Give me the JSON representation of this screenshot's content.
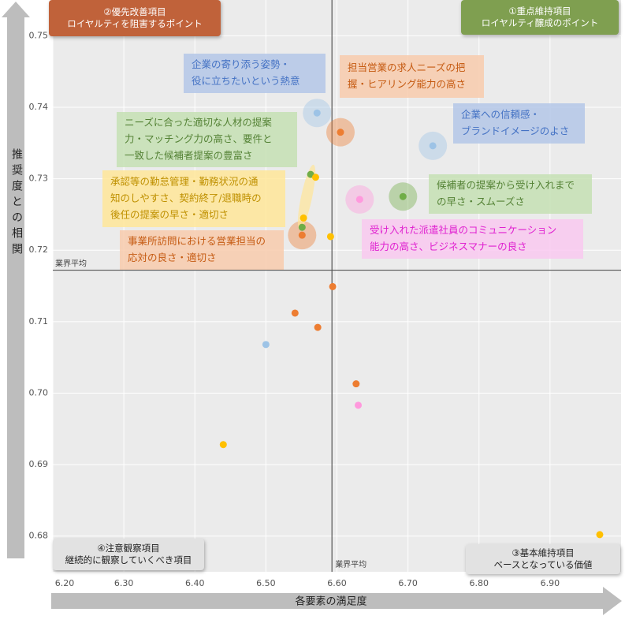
{
  "chart_data": {
    "type": "scatter",
    "x_label": "各要素の満足度",
    "y_label": "推奨度との相関",
    "xlim": [
      6.2,
      7.0
    ],
    "xticks": [
      {
        "value": 6.2,
        "label": "6.20"
      },
      {
        "value": 6.3,
        "label": "6.30"
      },
      {
        "value": 6.4,
        "label": "6.40"
      },
      {
        "value": 6.5,
        "label": "6.50"
      },
      {
        "value": 6.6,
        "label": "6.60"
      },
      {
        "value": 6.7,
        "label": "6.70"
      },
      {
        "value": 6.8,
        "label": "6.80"
      },
      {
        "value": 6.9,
        "label": "6.90"
      }
    ],
    "ylim": [
      0.675,
      0.755
    ],
    "yticks": [
      {
        "value": 0.68,
        "label": "0.68"
      },
      0.69,
      {
        "value": 0.7,
        "label": "0.70"
      },
      0.71,
      0.72,
      0.73,
      0.74,
      0.75
    ],
    "grid": true,
    "reference_lines": {
      "x": 6.593,
      "y": 0.7172,
      "label": "業界平均"
    },
    "points": {
      "x": [
        6.572,
        6.605,
        6.735,
        6.693,
        6.632,
        6.563,
        6.57,
        6.553,
        6.551,
        6.551,
        6.591,
        6.594,
        6.541,
        6.573,
        6.5,
        6.627,
        6.63,
        6.44,
        6.97
      ],
      "y": [
        0.7392,
        0.7365,
        0.7346,
        0.7275,
        0.7271,
        0.7306,
        0.7302,
        0.7245,
        0.7232,
        0.7221,
        0.7219,
        0.7149,
        0.7112,
        0.7092,
        0.7068,
        0.7013,
        0.6983,
        0.6928,
        0.6802
      ],
      "colors": [
        "#9dc3e6",
        "#ed7d31",
        "#9dc3e6",
        "#70ad47",
        "#ff99dd",
        "#70ad47",
        "#ffc000",
        "#ffc000",
        "#70ad47",
        "#ed7d31",
        "#ffc000",
        "#ed7d31",
        "#ed7d31",
        "#ed7d31",
        "#9dc3e6",
        "#ed7d31",
        "#ff99dd",
        "#ffc000",
        "#ffc000"
      ],
      "highlighted": [
        true,
        true,
        true,
        true,
        true,
        false,
        false,
        false,
        false,
        true,
        false,
        false,
        false,
        false,
        false,
        false,
        false,
        false,
        false
      ]
    },
    "annotations": [
      {
        "lines": [
          "企業の寄り添う姿勢・",
          "役に立ちたいという熱意"
        ],
        "color": "#4472c4",
        "background": "#b4c7e7"
      },
      {
        "lines": [
          "担当営業の求人ニーズの把",
          "握・ヒアリング能力の高さ"
        ],
        "color": "#c55a11",
        "background": "#f8cbad"
      },
      {
        "lines": [
          "企業への信頼感・",
          "ブランドイメージのよさ"
        ],
        "color": "#4472c4",
        "background": "#b4c7e7"
      },
      {
        "lines": [
          "ニーズに合った適切な人材の提案",
          "力・マッチング力の高さ、要件と",
          "一致した候補者提案の豊富さ"
        ],
        "color": "#548235",
        "background": "#c5e0b4"
      },
      {
        "lines": [
          "承認等の勤怠管理・勤務状況の通",
          "知のしやすさ、契約終了/退職時の",
          "後任の提案の早さ・適切さ"
        ],
        "color": "#bf9000",
        "background": "#ffe699"
      },
      {
        "lines": [
          "候補者の提案から受け入れまで",
          "の早さ・スムーズさ"
        ],
        "color": "#548235",
        "background": "#c5e0b4"
      },
      {
        "lines": [
          "事業所訪問における営業担当の",
          "応対の良さ・適切さ"
        ],
        "color": "#c55a11",
        "background": "#f8cbad"
      },
      {
        "lines": [
          "受け入れた派遣社員のコミュニケーション",
          "能力の高さ、ビジネスマナーの良さ"
        ],
        "color": "#e020d0",
        "background": "#f9c9f0"
      }
    ],
    "quadrants": [
      {
        "lines": [
          "②優先改善項目",
          "ロイヤルティを阻害するポイント"
        ],
        "color": "#ffffff",
        "background": "#c0623a"
      },
      {
        "lines": [
          "①重点維持項目",
          "ロイヤルティ醸成のポイント"
        ],
        "color": "#ffffff",
        "background": "#7f9f50"
      },
      {
        "lines": [
          "④注意観察項目",
          "継続的に観察していくべき項目"
        ],
        "color": "#222222",
        "background": "#e2e2e2"
      },
      {
        "lines": [
          "③基本維持項目",
          "ベースとなっている価値"
        ],
        "color": "#222222",
        "background": "#e2e2e2"
      }
    ]
  }
}
